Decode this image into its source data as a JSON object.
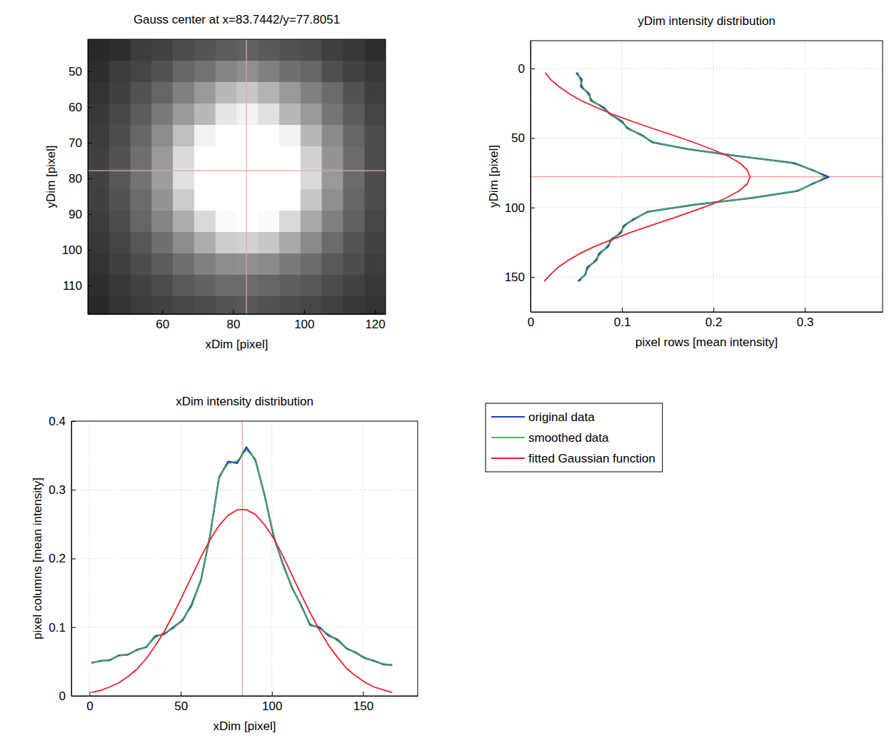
{
  "chart_data": [
    {
      "type": "heatmap",
      "title": "Gauss center at x=83.7442/y=77.8051",
      "x_label": "xDim [pixel]",
      "y_label": "yDim [pixel]",
      "x": [
        42,
        48,
        54,
        60,
        66,
        72,
        78,
        84,
        90,
        96,
        102,
        108,
        114,
        120
      ],
      "y": [
        44,
        50,
        56,
        62,
        68,
        74,
        80,
        86,
        92,
        98,
        104,
        110,
        116
      ],
      "cells": [
        [
          0.16,
          0.18,
          0.24,
          0.26,
          0.3,
          0.33,
          0.36,
          0.38,
          0.35,
          0.32,
          0.3,
          0.25,
          0.22,
          0.18
        ],
        [
          0.18,
          0.24,
          0.27,
          0.32,
          0.4,
          0.45,
          0.52,
          0.56,
          0.5,
          0.44,
          0.4,
          0.31,
          0.26,
          0.22
        ],
        [
          0.2,
          0.25,
          0.32,
          0.4,
          0.5,
          0.6,
          0.72,
          0.78,
          0.7,
          0.6,
          0.5,
          0.42,
          0.32,
          0.24
        ],
        [
          0.22,
          0.28,
          0.36,
          0.48,
          0.6,
          0.72,
          0.9,
          0.95,
          0.88,
          0.72,
          0.6,
          0.46,
          0.36,
          0.27
        ],
        [
          0.24,
          0.3,
          0.4,
          0.55,
          0.75,
          0.95,
          1,
          1,
          1,
          0.95,
          0.72,
          0.54,
          0.4,
          0.3
        ],
        [
          0.25,
          0.32,
          0.44,
          0.6,
          0.85,
          1,
          1,
          1,
          1,
          1,
          0.82,
          0.58,
          0.42,
          0.3
        ],
        [
          0.26,
          0.34,
          0.45,
          0.62,
          0.88,
          1,
          1,
          1,
          1,
          1,
          0.85,
          0.6,
          0.42,
          0.3
        ],
        [
          0.25,
          0.32,
          0.42,
          0.58,
          0.8,
          1,
          1,
          1,
          1,
          1,
          0.78,
          0.56,
          0.4,
          0.3
        ],
        [
          0.24,
          0.3,
          0.4,
          0.52,
          0.68,
          0.85,
          0.98,
          1,
          0.98,
          0.85,
          0.66,
          0.5,
          0.38,
          0.28
        ],
        [
          0.22,
          0.27,
          0.34,
          0.44,
          0.55,
          0.68,
          0.8,
          0.82,
          0.78,
          0.66,
          0.54,
          0.42,
          0.33,
          0.26
        ],
        [
          0.2,
          0.25,
          0.3,
          0.36,
          0.43,
          0.5,
          0.55,
          0.56,
          0.54,
          0.48,
          0.42,
          0.35,
          0.3,
          0.24
        ],
        [
          0.18,
          0.22,
          0.26,
          0.3,
          0.35,
          0.38,
          0.42,
          0.42,
          0.4,
          0.37,
          0.34,
          0.3,
          0.26,
          0.22
        ],
        [
          0.16,
          0.2,
          0.23,
          0.26,
          0.28,
          0.3,
          0.33,
          0.34,
          0.32,
          0.3,
          0.28,
          0.26,
          0.22,
          0.2
        ]
      ],
      "zlim": [
        0,
        1
      ],
      "xlim": [
        39,
        123
      ],
      "xticks": [
        60,
        80,
        100,
        120
      ],
      "ylim": [
        118,
        41
      ],
      "yticks": [
        50,
        60,
        70,
        80,
        90,
        100,
        110
      ],
      "center": {
        "x": 83.7442,
        "y": 77.8051
      }
    },
    {
      "type": "line",
      "orientation": "horizontal",
      "title": "yDim intensity distribution",
      "x_label": "pixel rows [mean intensity]",
      "y_label": "yDim [pixel]",
      "y": [
        3,
        8,
        13,
        18,
        23,
        28,
        33,
        38,
        43,
        48,
        53,
        58,
        63,
        68,
        73,
        78,
        83,
        88,
        93,
        98,
        103,
        108,
        113,
        118,
        123,
        128,
        133,
        138,
        143,
        148,
        153
      ],
      "series": [
        {
          "color": "#1f3fbf",
          "values": [
            0.05,
            0.056,
            0.055,
            0.064,
            0.066,
            0.08,
            0.087,
            0.1,
            0.106,
            0.122,
            0.133,
            0.172,
            0.228,
            0.288,
            0.308,
            0.326,
            0.308,
            0.292,
            0.243,
            0.178,
            0.128,
            0.114,
            0.102,
            0.099,
            0.088,
            0.085,
            0.075,
            0.072,
            0.062,
            0.06,
            0.052
          ]
        },
        {
          "color": "#4cb34c",
          "values": [
            0.052,
            0.054,
            0.057,
            0.062,
            0.068,
            0.078,
            0.088,
            0.098,
            0.108,
            0.12,
            0.135,
            0.17,
            0.23,
            0.285,
            0.31,
            0.322,
            0.31,
            0.29,
            0.245,
            0.175,
            0.13,
            0.112,
            0.104,
            0.097,
            0.09,
            0.083,
            0.077,
            0.07,
            0.064,
            0.059,
            0.054
          ]
        },
        {
          "color": "#e8222a",
          "values": [
            0.016,
            0.022,
            0.031,
            0.042,
            0.055,
            0.072,
            0.09,
            0.111,
            0.133,
            0.156,
            0.178,
            0.198,
            0.216,
            0.229,
            0.237,
            0.24,
            0.237,
            0.228,
            0.214,
            0.197,
            0.176,
            0.154,
            0.131,
            0.109,
            0.089,
            0.07,
            0.054,
            0.041,
            0.03,
            0.022,
            0.015
          ]
        }
      ],
      "xlim": [
        0,
        0.385
      ],
      "xticks": [
        0,
        0.1,
        0.2,
        0.3
      ],
      "ylim": [
        175,
        -20
      ],
      "yticks": [
        0,
        50,
        100,
        150
      ],
      "grid": true,
      "center": {
        "y": 77.8051
      }
    },
    {
      "type": "line",
      "title": "xDim intensity distribution",
      "x_label": "xDim [pixel]",
      "y_label": "pixel columns [mean intensity]",
      "x": [
        1,
        6,
        11,
        16,
        21,
        26,
        31,
        36,
        41,
        46,
        51,
        56,
        61,
        66,
        71,
        76,
        81,
        86,
        91,
        96,
        101,
        106,
        111,
        116,
        121,
        126,
        131,
        136,
        141,
        146,
        151,
        156,
        161,
        166
      ],
      "series": [
        {
          "name": "original data",
          "color": "#1f3fbf",
          "values": [
            0.048,
            0.051,
            0.052,
            0.059,
            0.06,
            0.067,
            0.071,
            0.087,
            0.09,
            0.1,
            0.11,
            0.133,
            0.168,
            0.232,
            0.318,
            0.341,
            0.339,
            0.362,
            0.343,
            0.292,
            0.232,
            0.192,
            0.158,
            0.132,
            0.103,
            0.1,
            0.088,
            0.082,
            0.069,
            0.063,
            0.055,
            0.051,
            0.046,
            0.045
          ]
        },
        {
          "name": "smoothed data",
          "color": "#4cb34c",
          "values": [
            0.049,
            0.05,
            0.053,
            0.058,
            0.061,
            0.066,
            0.072,
            0.085,
            0.092,
            0.098,
            0.112,
            0.13,
            0.17,
            0.23,
            0.32,
            0.338,
            0.342,
            0.358,
            0.345,
            0.29,
            0.235,
            0.19,
            0.16,
            0.13,
            0.105,
            0.098,
            0.09,
            0.08,
            0.07,
            0.062,
            0.056,
            0.05,
            0.047,
            0.044
          ]
        },
        {
          "name": "fitted Gaussian function",
          "color": "#e8222a",
          "values": [
            0.005,
            0.008,
            0.013,
            0.019,
            0.028,
            0.039,
            0.054,
            0.073,
            0.094,
            0.119,
            0.146,
            0.174,
            0.202,
            0.227,
            0.248,
            0.263,
            0.271,
            0.271,
            0.264,
            0.249,
            0.229,
            0.204,
            0.176,
            0.148,
            0.121,
            0.096,
            0.074,
            0.056,
            0.04,
            0.029,
            0.02,
            0.013,
            0.009,
            0.005
          ]
        }
      ],
      "xlim": [
        -10,
        180
      ],
      "xticks": [
        0,
        50,
        100,
        150
      ],
      "ylim": [
        0,
        0.4
      ],
      "yticks": [
        0,
        0.1,
        0.2,
        0.3,
        0.4
      ],
      "grid": true,
      "legend": "right",
      "center": {
        "x": 83.7442
      }
    }
  ]
}
